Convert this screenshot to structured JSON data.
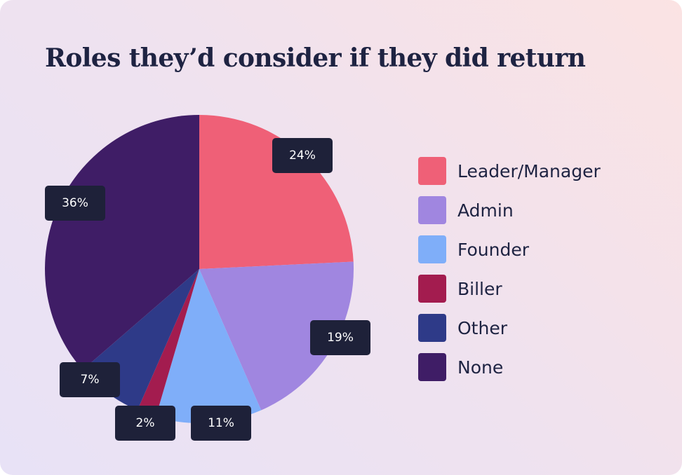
{
  "chart_data": {
    "type": "pie",
    "title": "Roles they’d consider if they did return",
    "slices": [
      {
        "label": "Leader/Manager",
        "value": 24,
        "value_label": "24%",
        "color": "#ef6077"
      },
      {
        "label": "Admin",
        "value": 19,
        "value_label": "19%",
        "color": "#a086e0"
      },
      {
        "label": "Founder",
        "value": 11,
        "value_label": "11%",
        "color": "#7faef9"
      },
      {
        "label": "Biller",
        "value": 2,
        "value_label": "2%",
        "color": "#a31c4f"
      },
      {
        "label": "Other",
        "value": 7,
        "value_label": "7%",
        "color": "#2e3a88"
      },
      {
        "label": "None",
        "value": 36,
        "value_label": "36%",
        "color": "#3f1d66"
      }
    ],
    "label_box_color": "#1e2139",
    "legend_position": "right"
  }
}
